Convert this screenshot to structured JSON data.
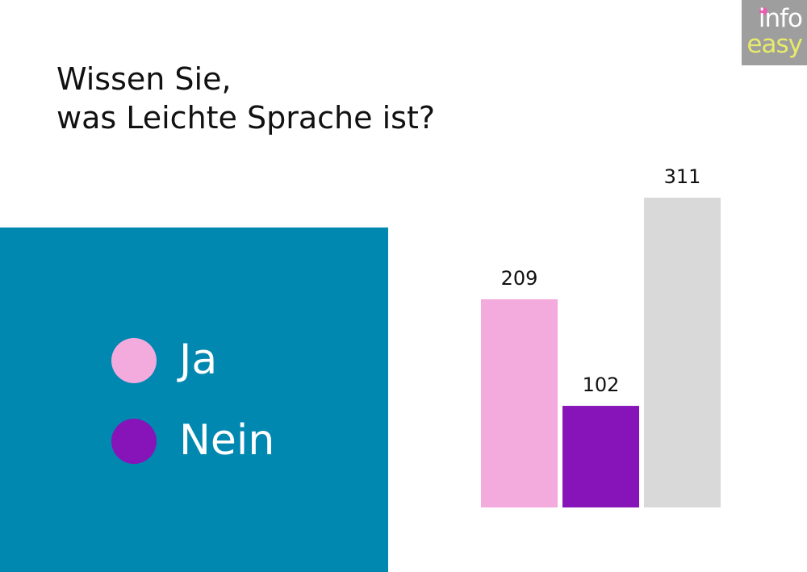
{
  "title_lines": [
    "Wissen Sie,",
    "was Leichte Sprache ist?"
  ],
  "logo": {
    "line1": "info",
    "line2": "easy",
    "colors": {
      "bg": "#9e9e9e",
      "text": "#ffffff",
      "accent": "#e8eb6a",
      "dot": "#e85fb0"
    }
  },
  "legend": {
    "background": "#0088b0",
    "items": [
      {
        "label": "Ja",
        "color": "#f3aadd"
      },
      {
        "label": "Nein",
        "color": "#8614b8"
      }
    ]
  },
  "chart_data": {
    "type": "bar",
    "title": "Wissen Sie, was Leichte Sprache ist?",
    "categories": [
      "Ja",
      "Nein",
      ""
    ],
    "values": [
      209,
      102,
      311
    ],
    "colors": [
      "#f3aadd",
      "#8614b8",
      "#d9d9d9"
    ],
    "data_labels": [
      "209",
      "102",
      "311"
    ],
    "ylim": [
      0,
      311
    ],
    "grid": false,
    "legend_placement": "left"
  }
}
